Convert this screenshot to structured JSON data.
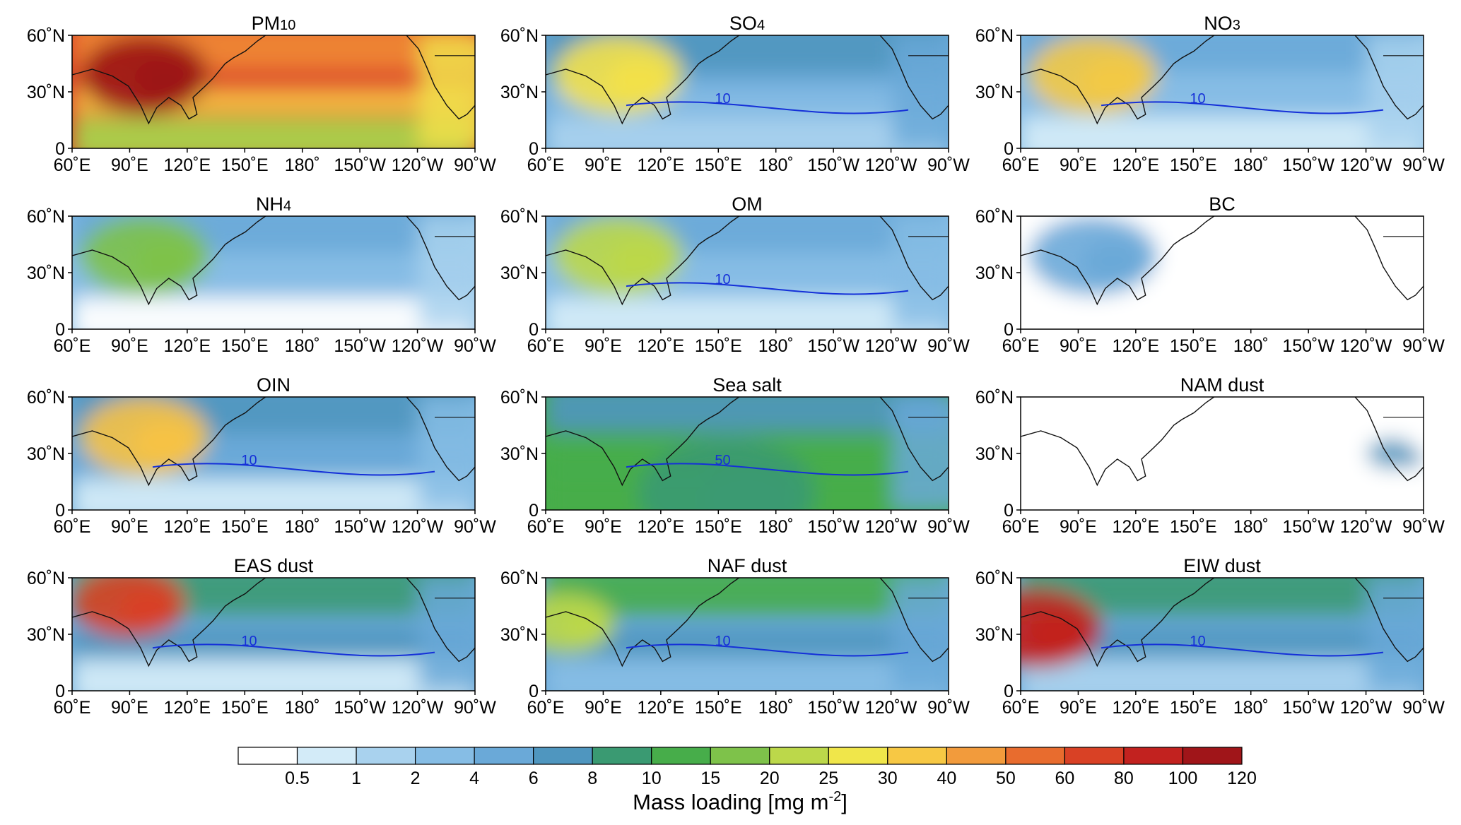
{
  "colorbar": {
    "label": "Mass loading [mg m",
    "label_sup": "-2",
    "label_end": "]",
    "levels": [
      "0.5",
      "1",
      "2",
      "4",
      "6",
      "8",
      "10",
      "15",
      "20",
      "25",
      "30",
      "40",
      "50",
      "60",
      "80",
      "100",
      "120"
    ],
    "colors": [
      "#ffffff",
      "#d3ebf8",
      "#a9d2ee",
      "#86bde5",
      "#6aa9d8",
      "#4f96bf",
      "#3a9a72",
      "#47ad4a",
      "#7ec24a",
      "#bcd84a",
      "#f0e64a",
      "#f7c844",
      "#f29b3c",
      "#e86c2e",
      "#d94125",
      "#c2221f",
      "#a01519"
    ]
  },
  "axes": {
    "x_ticks": [
      "60˚E",
      "90˚E",
      "120˚E",
      "150˚E",
      "180˚",
      "150˚W",
      "120˚W",
      "90˚W"
    ],
    "y_ticks": [
      "60˚N",
      "30˚N",
      "0"
    ]
  },
  "panels": [
    {
      "id": "pm10",
      "title": "PM",
      "title_sub": "10",
      "base": "#d83a27",
      "blob": "#9c1417",
      "north": "#f08a35",
      "mid": "#f6c244",
      "south": "#a9d34b",
      "east": "#f1df4a"
    },
    {
      "id": "so4",
      "title": "SO",
      "title_sub": "4",
      "base": "#6aa9d8",
      "blob": "#f3e14a",
      "north": "#4f96bf",
      "mid": "#86bde5",
      "south": "#a9d2ee",
      "east": "#6aa9d8",
      "contour_label": "10"
    },
    {
      "id": "no3",
      "title": "NO",
      "title_sub": "3",
      "base": "#86bde5",
      "blob": "#f3c944",
      "north": "#6aa9d8",
      "mid": "#86bde5",
      "south": "#d3ebf8",
      "east": "#a9d2ee",
      "contour_label": "10"
    },
    {
      "id": "nh4",
      "title": "NH",
      "title_sub": "4",
      "base": "#86bde5",
      "blob": "#7ec24a",
      "north": "#6aa9d8",
      "mid": "#86bde5",
      "south": "#ffffff",
      "east": "#a9d2ee",
      "contour_label": ""
    },
    {
      "id": "om",
      "title": "OM",
      "title_sub": "",
      "base": "#86bde5",
      "blob": "#bcd84a",
      "north": "#6aa9d8",
      "mid": "#86bde5",
      "south": "#d3ebf8",
      "east": "#86bde5",
      "contour_label": "10"
    },
    {
      "id": "bc",
      "title": "BC",
      "title_sub": "",
      "base": "#ffffff",
      "blob": "#6aa9d8",
      "north": "#ffffff",
      "mid": "#ffffff",
      "south": "#ffffff",
      "east": "#ffffff",
      "contour_label": ""
    },
    {
      "id": "oin",
      "title": "OIN",
      "title_sub": "",
      "base": "#6aa9d8",
      "blob": "#f6c244",
      "north": "#4f96bf",
      "mid": "#6aa9d8",
      "south": "#d3ebf8",
      "east": "#86bde5",
      "contour_label": "10"
    },
    {
      "id": "seasalt",
      "title": "Sea salt",
      "title_sub": "",
      "base": "#47ad4a",
      "blob": "#3a9a72",
      "north": "#4f96bf",
      "mid": "#47ad4a",
      "south": "#47ad4a",
      "east": "#6aa9d8",
      "contour_label": "50"
    },
    {
      "id": "namdust",
      "title": "NAM dust",
      "title_sub": "",
      "base": "#ffffff",
      "blob": "#4f96bf",
      "north": "#ffffff",
      "mid": "#ffffff",
      "south": "#ffffff",
      "east": "#ffffff",
      "contour_label": ""
    },
    {
      "id": "easdust",
      "title": "EAS dust",
      "title_sub": "",
      "base": "#6aa9d8",
      "blob": "#d94125",
      "north": "#3a9a72",
      "mid": "#4f96bf",
      "south": "#d3ebf8",
      "east": "#6aa9d8",
      "contour_label": "10"
    },
    {
      "id": "nafdust",
      "title": "NAF dust",
      "title_sub": "",
      "base": "#6aa9d8",
      "blob": "#bcd84a",
      "north": "#47ad4a",
      "mid": "#4f96bf",
      "south": "#86bde5",
      "east": "#6aa9d8",
      "contour_label": "10"
    },
    {
      "id": "eiwdust",
      "title": "EIW dust",
      "title_sub": "",
      "base": "#6aa9d8",
      "blob": "#c2221f",
      "north": "#3a9a72",
      "mid": "#4f96bf",
      "south": "#a9d2ee",
      "east": "#6aa9d8",
      "contour_label": "10"
    }
  ]
}
